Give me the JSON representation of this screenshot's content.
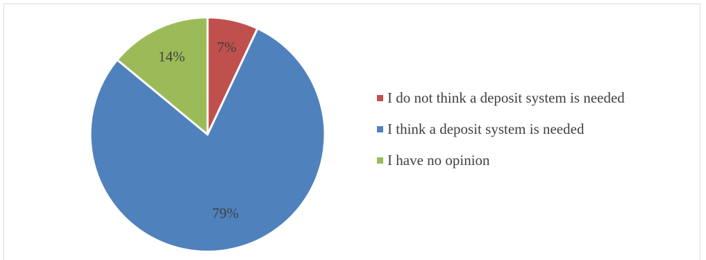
{
  "chart_data": {
    "type": "pie",
    "categories": [
      "I do not think a deposit system is needed",
      "I think a deposit system is needed",
      "I have no opinion"
    ],
    "values": [
      7,
      79,
      14
    ],
    "labels": [
      "7%",
      "79%",
      "14%"
    ],
    "colors": [
      "#c0504d",
      "#4f81bd",
      "#9bbb59"
    ],
    "legend": "right",
    "start_angle": "12 o'clock, clockwise"
  }
}
